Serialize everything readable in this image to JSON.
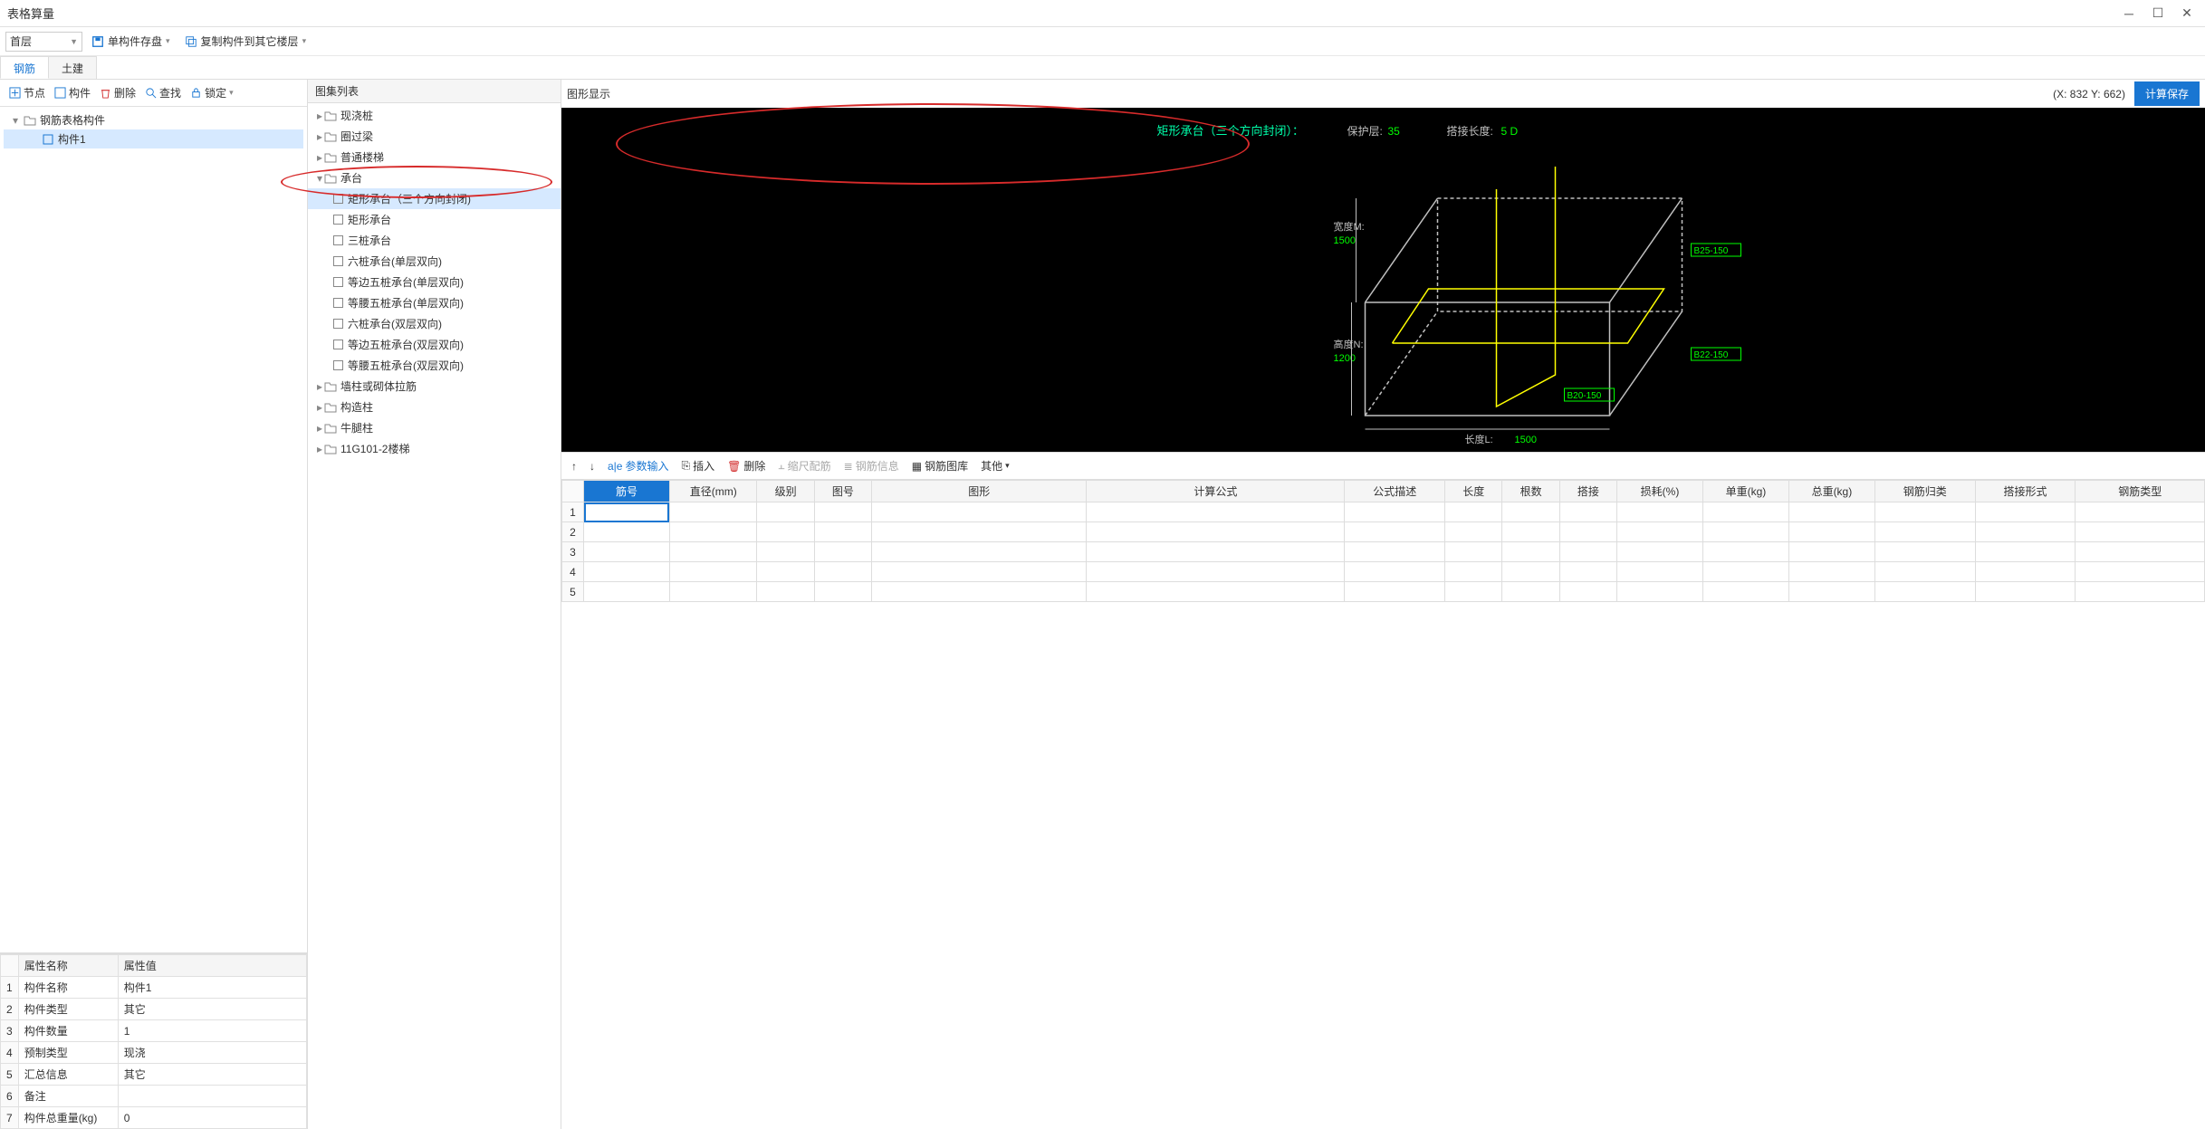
{
  "window": {
    "title": "表格算量",
    "coords": "(X: 832 Y: 662)"
  },
  "toolbar": {
    "floor": "首层",
    "save_single": "单构件存盘",
    "copy_to_floor": "复制构件到其它楼层"
  },
  "tabs": {
    "rebar": "钢筋",
    "civil": "土建"
  },
  "left_toolbar": {
    "node": "节点",
    "component": "构件",
    "delete": "删除",
    "find": "查找",
    "lock": "锁定"
  },
  "tree": {
    "root": "钢筋表格构件",
    "item1": "构件1"
  },
  "props": {
    "header_name": "属性名称",
    "header_value": "属性值",
    "rows": [
      {
        "n": "构件名称",
        "v": "构件1"
      },
      {
        "n": "构件类型",
        "v": "其它"
      },
      {
        "n": "构件数量",
        "v": "1"
      },
      {
        "n": "预制类型",
        "v": "现浇"
      },
      {
        "n": "汇总信息",
        "v": "其它"
      },
      {
        "n": "备注",
        "v": ""
      },
      {
        "n": "构件总重量(kg)",
        "v": "0"
      }
    ]
  },
  "catalog": {
    "title": "图集列表",
    "groups": [
      {
        "label": "现浇桩",
        "expanded": false
      },
      {
        "label": "圈过梁",
        "expanded": false
      },
      {
        "label": "普通楼梯",
        "expanded": false
      },
      {
        "label": "承台",
        "expanded": true,
        "children": [
          {
            "label": "矩形承台（三个方向封闭)",
            "selected": true
          },
          {
            "label": "矩形承台"
          },
          {
            "label": "三桩承台"
          },
          {
            "label": "六桩承台(单层双向)"
          },
          {
            "label": "等边五桩承台(单层双向)"
          },
          {
            "label": "等腰五桩承台(单层双向)"
          },
          {
            "label": "六桩承台(双层双向)"
          },
          {
            "label": "等边五桩承台(双层双向)"
          },
          {
            "label": "等腰五桩承台(双层双向)"
          }
        ]
      },
      {
        "label": "墙柱或砌体拉筋",
        "expanded": false
      },
      {
        "label": "构造柱",
        "expanded": false
      },
      {
        "label": "牛腿柱",
        "expanded": false
      },
      {
        "label": "11G101-2楼梯",
        "expanded": false
      }
    ]
  },
  "viewer": {
    "title": "图形显示",
    "calc_save": "计算保存",
    "diagram": {
      "title_text": "矩形承台（三个方向封闭）：",
      "cover_label": "保护层:",
      "cover_value": "35",
      "lap_label": "搭接长度:",
      "lap_value": "5 D",
      "width_label": "宽度M:",
      "width_value": "1500",
      "height_label": "高度N:",
      "height_value": "1200",
      "length_label": "长度L:",
      "length_value": "1500",
      "b25": "B25-150",
      "b22": "B22-150",
      "b20": "B20-150",
      "colors": {
        "bg": "#000000",
        "title": "#00ffaa",
        "label": "#c0c0c0",
        "value": "#00ff00",
        "box_line": "#c0c0c0",
        "rebar_yellow": "#ffff00",
        "dim_green": "#00ff00",
        "anno_red": "#d72b2b"
      }
    }
  },
  "grid_toolbar": {
    "param_input": "参数输入",
    "insert": "插入",
    "delete": "删除",
    "scale_rebar": "缩尺配筋",
    "rebar_info": "钢筋信息",
    "rebar_lib": "钢筋图库",
    "other": "其他"
  },
  "grid": {
    "columns": [
      "筋号",
      "直径(mm)",
      "级别",
      "图号",
      "图形",
      "计算公式",
      "公式描述",
      "长度",
      "根数",
      "搭接",
      "损耗(%)",
      "单重(kg)",
      "总重(kg)",
      "钢筋归类",
      "搭接形式",
      "钢筋类型"
    ],
    "active_col": 0,
    "rows": 5
  }
}
